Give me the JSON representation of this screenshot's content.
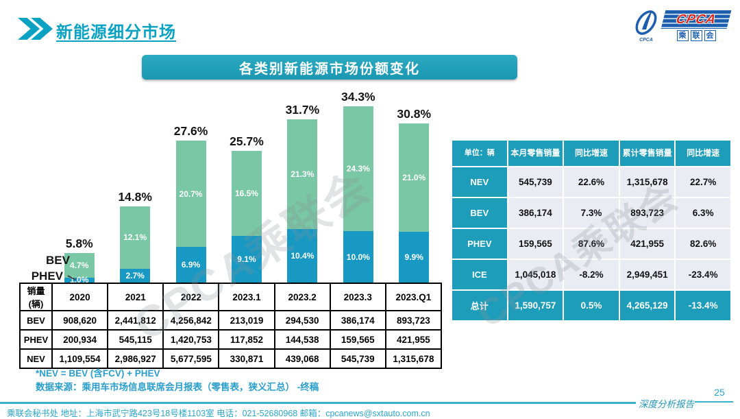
{
  "page": {
    "title": "新能源细分市场",
    "page_number": "25",
    "report_label": "深度分析报告",
    "footer": "乘联会秘书处   地址：上海市武宁路423号18号楼1103室  电话：021-52680968   邮箱：cpcanews@sxtauto.com.cn",
    "watermark": "CPCA乘联会"
  },
  "logo": {
    "acronym": "CPCA",
    "chinese": "乘联会",
    "emblem_caption": "CPCA"
  },
  "banner": {
    "title": "各类别新能源市场份额变化"
  },
  "chart_data": {
    "type": "bar",
    "stacked": true,
    "title": "各类别新能源市场份额变化",
    "categories": [
      "2020",
      "2021",
      "2022",
      "2023.1",
      "2023.2",
      "2023.3",
      "2023.Q1"
    ],
    "series": [
      {
        "name": "PHEV",
        "color": "#1899c4",
        "values": [
          1.0,
          2.7,
          6.9,
          9.1,
          10.4,
          10.0,
          9.9
        ]
      },
      {
        "name": "BEV",
        "color": "#79c7a4",
        "values": [
          4.7,
          12.1,
          20.7,
          16.5,
          21.3,
          24.3,
          21.0
        ]
      }
    ],
    "totals": [
      5.8,
      14.8,
      27.6,
      25.7,
      31.7,
      34.3,
      30.8
    ],
    "total_labels": [
      "5.8%",
      "14.8%",
      "27.6%",
      "25.7%",
      "31.7%",
      "34.3%",
      "30.8%"
    ],
    "segment_labels": {
      "BEV": [
        "4.7%",
        "12.1%",
        "20.7%",
        "16.5%",
        "21.3%",
        "24.3%",
        "21.0%"
      ],
      "PHEV": [
        "1.0%",
        "2.7%",
        "6.9%",
        "9.1%",
        "10.4%",
        "10.0%",
        "9.9%"
      ]
    },
    "legend": [
      "BEV",
      "PHEV"
    ],
    "ylim": [
      0,
      36
    ],
    "ylabel": "",
    "xlabel": ""
  },
  "sales_table": {
    "header": [
      "销量(辆)",
      "2020",
      "2021",
      "2022",
      "2023.1",
      "2023.2",
      "2023.3",
      "2023.Q1"
    ],
    "rows": [
      {
        "label": "BEV",
        "values": [
          "908,620",
          "2,441,812",
          "4,256,842",
          "213,019",
          "294,530",
          "386,174",
          "893,723"
        ]
      },
      {
        "label": "PHEV",
        "values": [
          "200,934",
          "545,115",
          "1,420,753",
          "117,852",
          "144,538",
          "159,565",
          "421,955"
        ]
      },
      {
        "label": "NEV",
        "values": [
          "1,109,554",
          "2,986,927",
          "5,677,595",
          "330,871",
          "439,068",
          "545,739",
          "1,315,678"
        ]
      }
    ]
  },
  "summary_table": {
    "header": [
      "单位：辆",
      "本月零售销量",
      "同比增速",
      "累计零售销量",
      "同比增速"
    ],
    "rows": [
      {
        "label": "NEV",
        "values": [
          "545,739",
          "22.6%",
          "1,315,678",
          "22.7%"
        ],
        "highlight": false
      },
      {
        "label": "BEV",
        "values": [
          "386,174",
          "7.3%",
          "893,723",
          "6.3%"
        ],
        "highlight": false
      },
      {
        "label": "PHEV",
        "values": [
          "159,565",
          "87.6%",
          "421,955",
          "82.6%"
        ],
        "highlight": false
      },
      {
        "label": "ICE",
        "values": [
          "1,045,018",
          "-8.2%",
          "2,949,451",
          "-23.4%"
        ],
        "highlight": false
      },
      {
        "label": "总计",
        "values": [
          "1,590,757",
          "0.5%",
          "4,265,129",
          "-13.4%"
        ],
        "highlight": true
      }
    ]
  },
  "notes": [
    "*NEV = BEV (含FCV) + PHEV",
    "数据来源：乘用车市场信息联席会月报表（零售表，狭义汇总） -终稿"
  ],
  "colors": {
    "teal": "#1e9dba",
    "title_teal": "#0aa2c3",
    "bar_green": "#79c7a4",
    "bar_blue": "#1899c4",
    "light_cell": "#e9edf3",
    "logo_blue": "#1c5fae",
    "logo_red": "#d42a20"
  }
}
